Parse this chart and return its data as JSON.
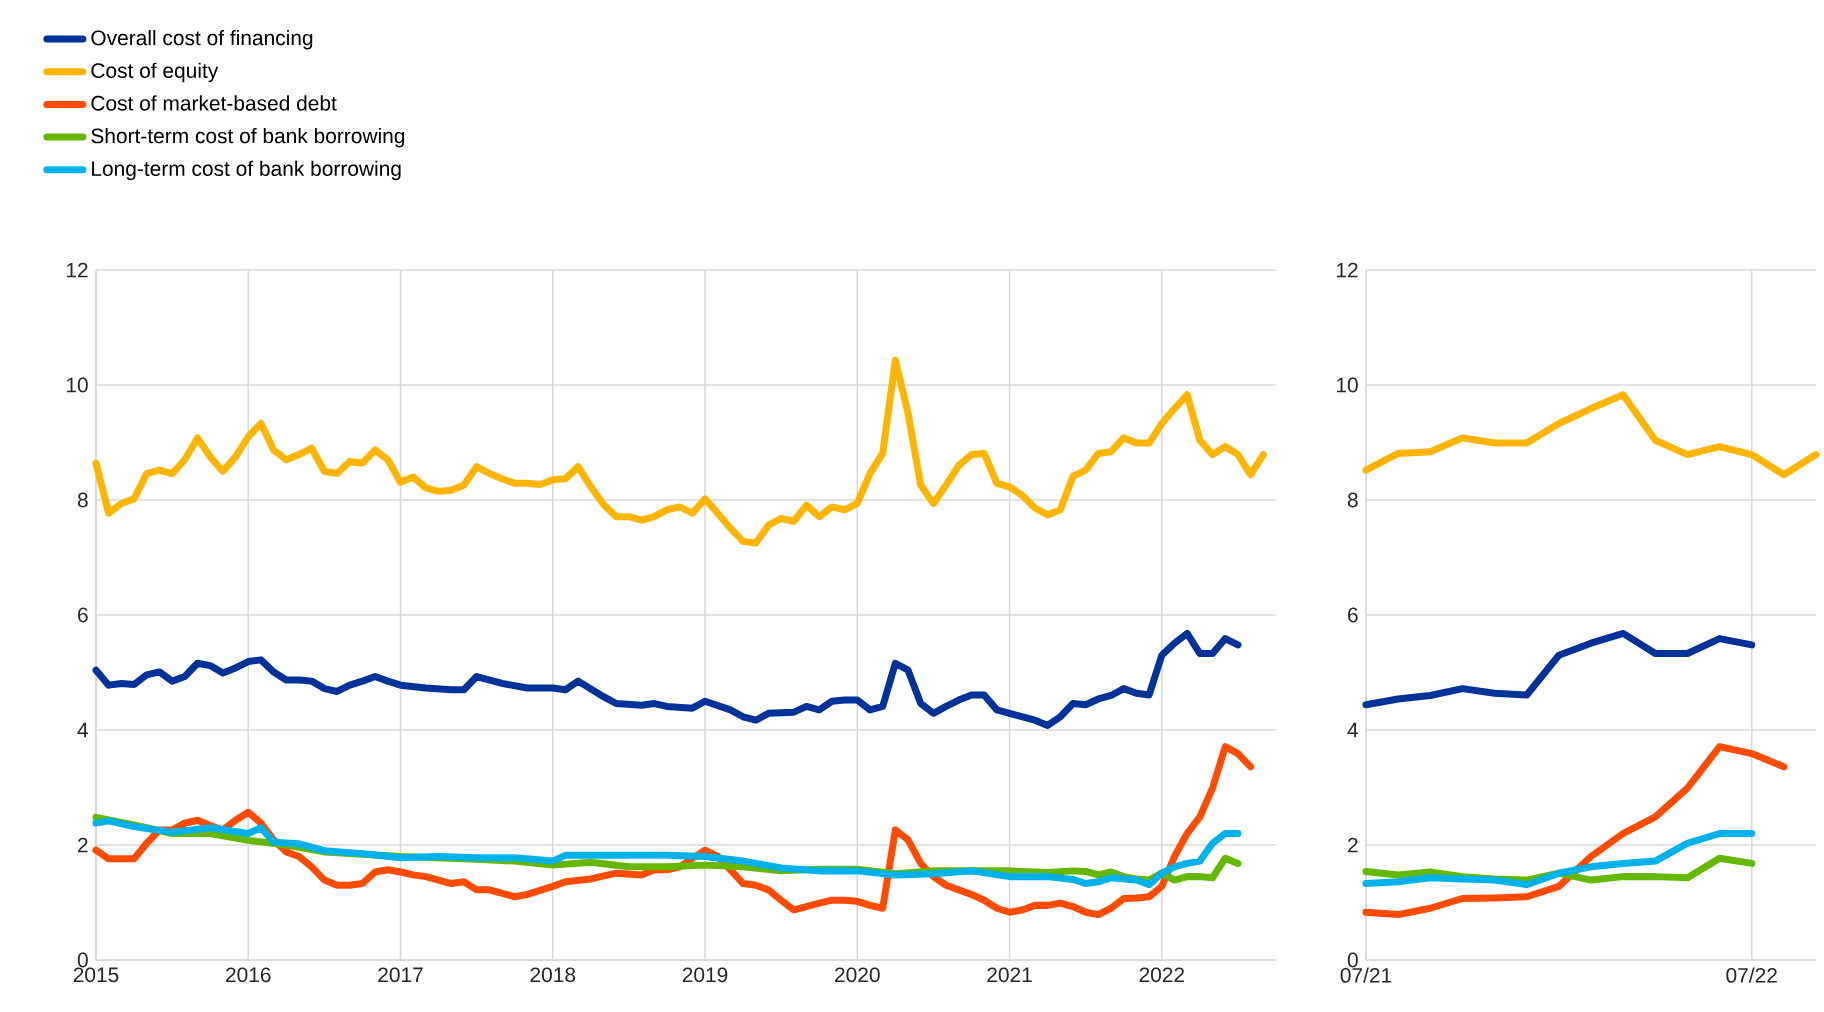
{
  "chart_data": [
    {
      "type": "line",
      "xlim": [
        "2015-01",
        "2022-10"
      ],
      "ylim": [
        0,
        12
      ],
      "grid": true,
      "legend": "top left",
      "xticks": [
        {
          "value": "2015-01",
          "label": "2015"
        },
        {
          "value": "2016-01",
          "label": "2016"
        },
        {
          "value": "2017-01",
          "label": "2017"
        },
        {
          "value": "2018-01",
          "label": "2018"
        },
        {
          "value": "2019-01",
          "label": "2019"
        },
        {
          "value": "2020-01",
          "label": "2020"
        },
        {
          "value": "2021-01",
          "label": "2021"
        },
        {
          "value": "2022-01",
          "label": "2022"
        }
      ],
      "yticks": [
        0,
        2,
        4,
        6,
        8,
        10,
        12
      ],
      "series": [
        {
          "name": "Overall cost of financing",
          "color": "#003299",
          "x": [
            "2015-01",
            "2015-02",
            "2015-03",
            "2015-04",
            "2015-05",
            "2015-06",
            "2015-07",
            "2015-08",
            "2015-09",
            "2015-10",
            "2015-11",
            "2015-12",
            "2016-01",
            "2016-02",
            "2016-03",
            "2016-04",
            "2016-05",
            "2016-06",
            "2016-07",
            "2016-08",
            "2016-09",
            "2016-10",
            "2016-11",
            "2016-12",
            "2017-01",
            "2017-03",
            "2017-05",
            "2017-06",
            "2017-07",
            "2017-09",
            "2017-11",
            "2018-01",
            "2018-02",
            "2018-03",
            "2018-05",
            "2018-06",
            "2018-08",
            "2018-09",
            "2018-10",
            "2018-12",
            "2019-01",
            "2019-03",
            "2019-04",
            "2019-05",
            "2019-06",
            "2019-08",
            "2019-09",
            "2019-10",
            "2019-11",
            "2019-12",
            "2020-01",
            "2020-02",
            "2020-03",
            "2020-04",
            "2020-05",
            "2020-06",
            "2020-07",
            "2020-08",
            "2020-09",
            "2020-10",
            "2020-11",
            "2020-12",
            "2021-01",
            "2021-03",
            "2021-04",
            "2021-05",
            "2021-06",
            "2021-07",
            "2021-08",
            "2021-09",
            "2021-10",
            "2021-11",
            "2021-12",
            "2022-01",
            "2022-02",
            "2022-03",
            "2022-04",
            "2022-05",
            "2022-06",
            "2022-07"
          ],
          "values": [
            5.04,
            4.78,
            4.81,
            4.79,
            4.96,
            5.01,
            4.85,
            4.93,
            5.16,
            5.12,
            4.99,
            5.08,
            5.19,
            5.22,
            5.01,
            4.87,
            4.87,
            4.85,
            4.72,
            4.67,
            4.78,
            4.85,
            4.93,
            4.85,
            4.78,
            4.73,
            4.7,
            4.7,
            4.93,
            4.81,
            4.73,
            4.73,
            4.7,
            4.85,
            4.58,
            4.46,
            4.43,
            4.46,
            4.41,
            4.38,
            4.5,
            4.35,
            4.23,
            4.17,
            4.29,
            4.31,
            4.41,
            4.35,
            4.5,
            4.52,
            4.52,
            4.35,
            4.41,
            5.16,
            5.04,
            4.46,
            4.29,
            4.41,
            4.52,
            4.61,
            4.61,
            4.35,
            4.29,
            4.17,
            4.08,
            4.23,
            4.46,
            4.44,
            4.54,
            4.6,
            4.72,
            4.64,
            4.61,
            5.3,
            5.51,
            5.68,
            5.33,
            5.33,
            5.59,
            5.48
          ]
        },
        {
          "name": "Cost of equity",
          "color": "#ffb400",
          "x": [
            "2015-01",
            "2015-02",
            "2015-03",
            "2015-04",
            "2015-05",
            "2015-06",
            "2015-07",
            "2015-08",
            "2015-09",
            "2015-10",
            "2015-11",
            "2015-12",
            "2016-01",
            "2016-02",
            "2016-03",
            "2016-04",
            "2016-05",
            "2016-06",
            "2016-07",
            "2016-08",
            "2016-09",
            "2016-10",
            "2016-11",
            "2016-12",
            "2017-01",
            "2017-02",
            "2017-03",
            "2017-04",
            "2017-05",
            "2017-06",
            "2017-07",
            "2017-08",
            "2017-09",
            "2017-10",
            "2017-11",
            "2017-12",
            "2018-01",
            "2018-02",
            "2018-03",
            "2018-04",
            "2018-05",
            "2018-06",
            "2018-07",
            "2018-08",
            "2018-09",
            "2018-10",
            "2018-11",
            "2018-12",
            "2019-01",
            "2019-02",
            "2019-03",
            "2019-04",
            "2019-05",
            "2019-06",
            "2019-07",
            "2019-08",
            "2019-09",
            "2019-10",
            "2019-11",
            "2019-12",
            "2020-01",
            "2020-02",
            "2020-03",
            "2020-04",
            "2020-05",
            "2020-06",
            "2020-07",
            "2020-08",
            "2020-09",
            "2020-10",
            "2020-11",
            "2020-12",
            "2021-01",
            "2021-02",
            "2021-03",
            "2021-04",
            "2021-05",
            "2021-06",
            "2021-07",
            "2021-08",
            "2021-09",
            "2021-10",
            "2021-11",
            "2021-12",
            "2022-01",
            "2022-02",
            "2022-03",
            "2022-04",
            "2022-05",
            "2022-06",
            "2022-07",
            "2022-08",
            "2022-09"
          ],
          "values": [
            8.64,
            7.77,
            7.94,
            8.02,
            8.46,
            8.52,
            8.46,
            8.7,
            9.08,
            8.75,
            8.5,
            8.75,
            9.1,
            9.33,
            8.87,
            8.7,
            8.79,
            8.9,
            8.5,
            8.46,
            8.67,
            8.64,
            8.87,
            8.7,
            8.31,
            8.4,
            8.21,
            8.15,
            8.17,
            8.26,
            8.58,
            8.46,
            8.37,
            8.29,
            8.29,
            8.27,
            8.35,
            8.37,
            8.58,
            8.23,
            7.92,
            7.71,
            7.71,
            7.65,
            7.71,
            7.83,
            7.88,
            7.77,
            8.02,
            7.77,
            7.51,
            7.28,
            7.25,
            7.56,
            7.68,
            7.63,
            7.91,
            7.71,
            7.88,
            7.83,
            7.94,
            8.46,
            8.81,
            10.43,
            9.51,
            8.26,
            7.94,
            8.26,
            8.6,
            8.79,
            8.81,
            8.29,
            8.23,
            8.08,
            7.86,
            7.74,
            7.83,
            8.41,
            8.52,
            8.81,
            8.84,
            9.08,
            8.99,
            8.99,
            9.33,
            9.59,
            9.83,
            9.04,
            8.79,
            8.93,
            8.79,
            8.44,
            8.79
          ]
        },
        {
          "name": "Cost of market-based debt",
          "color": "#ff4b00",
          "x": [
            "2015-01",
            "2015-02",
            "2015-03",
            "2015-04",
            "2015-05",
            "2015-06",
            "2015-07",
            "2015-08",
            "2015-09",
            "2015-10",
            "2015-11",
            "2015-12",
            "2016-01",
            "2016-02",
            "2016-03",
            "2016-04",
            "2016-05",
            "2016-06",
            "2016-07",
            "2016-08",
            "2016-09",
            "2016-10",
            "2016-11",
            "2016-12",
            "2017-01",
            "2017-02",
            "2017-03",
            "2017-04",
            "2017-05",
            "2017-06",
            "2017-07",
            "2017-08",
            "2017-09",
            "2017-10",
            "2017-11",
            "2018-01",
            "2018-02",
            "2018-04",
            "2018-06",
            "2018-08",
            "2018-09",
            "2018-10",
            "2018-11",
            "2019-01",
            "2019-02",
            "2019-03",
            "2019-04",
            "2019-05",
            "2019-06",
            "2019-07",
            "2019-08",
            "2019-09",
            "2019-10",
            "2019-11",
            "2019-12",
            "2020-01",
            "2020-02",
            "2020-03",
            "2020-04",
            "2020-05",
            "2020-06",
            "2020-07",
            "2020-08",
            "2020-09",
            "2020-10",
            "2020-11",
            "2020-12",
            "2021-01",
            "2021-02",
            "2021-03",
            "2021-04",
            "2021-05",
            "2021-06",
            "2021-07",
            "2021-08",
            "2021-09",
            "2021-10",
            "2021-11",
            "2021-12",
            "2022-01",
            "2022-02",
            "2022-03",
            "2022-04",
            "2022-05",
            "2022-06",
            "2022-07",
            "2022-08"
          ],
          "values": [
            1.91,
            1.76,
            1.76,
            1.76,
            2.03,
            2.26,
            2.26,
            2.38,
            2.43,
            2.34,
            2.26,
            2.43,
            2.57,
            2.38,
            2.09,
            1.88,
            1.8,
            1.62,
            1.39,
            1.3,
            1.3,
            1.33,
            1.53,
            1.57,
            1.53,
            1.48,
            1.45,
            1.39,
            1.33,
            1.36,
            1.22,
            1.22,
            1.16,
            1.1,
            1.14,
            1.28,
            1.36,
            1.41,
            1.51,
            1.48,
            1.57,
            1.57,
            1.62,
            1.91,
            1.8,
            1.57,
            1.33,
            1.3,
            1.22,
            1.04,
            0.87,
            0.93,
            0.99,
            1.04,
            1.04,
            1.02,
            0.95,
            0.9,
            2.26,
            2.09,
            1.68,
            1.45,
            1.3,
            1.22,
            1.14,
            1.04,
            0.9,
            0.83,
            0.87,
            0.95,
            0.95,
            0.99,
            0.93,
            0.83,
            0.79,
            0.9,
            1.07,
            1.08,
            1.1,
            1.28,
            1.8,
            2.2,
            2.49,
            2.99,
            3.71,
            3.59,
            3.36
          ]
        },
        {
          "name": "Short-term cost of bank borrowing",
          "color": "#65b800",
          "x": [
            "2015-01",
            "2015-04",
            "2015-07",
            "2015-10",
            "2016-01",
            "2016-04",
            "2016-07",
            "2017-01",
            "2017-07",
            "2017-10",
            "2018-01",
            "2018-04",
            "2018-07",
            "2018-10",
            "2019-01",
            "2019-04",
            "2019-07",
            "2019-10",
            "2020-01",
            "2020-04",
            "2020-07",
            "2020-10",
            "2021-01",
            "2021-04",
            "2021-06",
            "2021-07",
            "2021-08",
            "2021-09",
            "2021-10",
            "2021-11",
            "2021-12",
            "2022-01",
            "2022-02",
            "2022-03",
            "2022-04",
            "2022-05",
            "2022-06",
            "2022-07"
          ],
          "values": [
            2.48,
            2.35,
            2.2,
            2.2,
            2.08,
            2.0,
            1.88,
            1.8,
            1.75,
            1.72,
            1.65,
            1.7,
            1.62,
            1.62,
            1.65,
            1.62,
            1.55,
            1.58,
            1.58,
            1.5,
            1.55,
            1.55,
            1.55,
            1.52,
            1.55,
            1.54,
            1.48,
            1.53,
            1.45,
            1.41,
            1.39,
            1.51,
            1.39,
            1.45,
            1.45,
            1.43,
            1.77,
            1.68
          ]
        },
        {
          "name": "Long-term cost of bank borrowing",
          "color": "#00b1ea",
          "x": [
            "2015-01",
            "2015-02",
            "2015-04",
            "2015-07",
            "2015-10",
            "2016-01",
            "2016-02",
            "2016-03",
            "2016-05",
            "2016-07",
            "2016-10",
            "2017-01",
            "2017-04",
            "2017-07",
            "2017-10",
            "2018-01",
            "2018-02",
            "2018-07",
            "2018-10",
            "2019-01",
            "2019-04",
            "2019-07",
            "2019-10",
            "2020-01",
            "2020-04",
            "2020-07",
            "2020-10",
            "2021-01",
            "2021-04",
            "2021-06",
            "2021-07",
            "2021-08",
            "2021-09",
            "2021-10",
            "2021-11",
            "2021-12",
            "2022-01",
            "2022-02",
            "2022-03",
            "2022-04",
            "2022-05",
            "2022-06",
            "2022-07"
          ],
          "values": [
            2.38,
            2.42,
            2.32,
            2.22,
            2.3,
            2.2,
            2.3,
            2.05,
            2.02,
            1.9,
            1.85,
            1.78,
            1.8,
            1.78,
            1.78,
            1.72,
            1.82,
            1.82,
            1.82,
            1.8,
            1.72,
            1.6,
            1.55,
            1.55,
            1.48,
            1.5,
            1.55,
            1.45,
            1.45,
            1.4,
            1.33,
            1.36,
            1.43,
            1.41,
            1.39,
            1.31,
            1.51,
            1.62,
            1.68,
            1.72,
            2.03,
            2.2,
            2.2
          ]
        }
      ]
    },
    {
      "type": "line",
      "xlim": [
        "2021-07",
        "2022-09"
      ],
      "ylim": [
        0,
        12
      ],
      "grid": true,
      "xticks": [
        {
          "value": "2021-07",
          "label": "07/21"
        },
        {
          "value": "2022-07",
          "label": "07/22"
        }
      ],
      "yticks": [
        0,
        2,
        4,
        6,
        8,
        10,
        12
      ],
      "series": [
        {
          "color": "#003299",
          "x": [
            "2021-07",
            "2021-08",
            "2021-09",
            "2021-10",
            "2021-11",
            "2021-12",
            "2022-01",
            "2022-02",
            "2022-03",
            "2022-04",
            "2022-05",
            "2022-06",
            "2022-07"
          ],
          "values": [
            4.44,
            4.54,
            4.6,
            4.72,
            4.64,
            4.61,
            5.3,
            5.51,
            5.68,
            5.33,
            5.33,
            5.59,
            5.48
          ]
        },
        {
          "color": "#ffb400",
          "x": [
            "2021-07",
            "2021-08",
            "2021-09",
            "2021-10",
            "2021-11",
            "2021-12",
            "2022-01",
            "2022-02",
            "2022-03",
            "2022-04",
            "2022-05",
            "2022-06",
            "2022-07",
            "2022-08",
            "2022-09"
          ],
          "values": [
            8.52,
            8.81,
            8.84,
            9.08,
            8.99,
            8.99,
            9.33,
            9.59,
            9.83,
            9.04,
            8.79,
            8.93,
            8.79,
            8.44,
            8.79
          ]
        },
        {
          "color": "#ff4b00",
          "x": [
            "2021-07",
            "2021-08",
            "2021-09",
            "2021-10",
            "2021-11",
            "2021-12",
            "2022-01",
            "2022-02",
            "2022-03",
            "2022-04",
            "2022-05",
            "2022-06",
            "2022-07",
            "2022-08"
          ],
          "values": [
            0.83,
            0.79,
            0.9,
            1.07,
            1.08,
            1.1,
            1.28,
            1.8,
            2.2,
            2.49,
            2.99,
            3.71,
            3.59,
            3.36
          ]
        },
        {
          "color": "#65b800",
          "x": [
            "2021-07",
            "2021-08",
            "2021-09",
            "2021-10",
            "2021-11",
            "2021-12",
            "2022-01",
            "2022-02",
            "2022-03",
            "2022-04",
            "2022-05",
            "2022-06",
            "2022-07"
          ],
          "values": [
            1.54,
            1.48,
            1.53,
            1.45,
            1.41,
            1.39,
            1.51,
            1.39,
            1.45,
            1.45,
            1.43,
            1.77,
            1.68
          ]
        },
        {
          "color": "#00b1ea",
          "x": [
            "2021-07",
            "2021-08",
            "2021-09",
            "2021-10",
            "2021-11",
            "2021-12",
            "2022-01",
            "2022-02",
            "2022-03",
            "2022-04",
            "2022-05",
            "2022-06",
            "2022-07"
          ],
          "values": [
            1.33,
            1.36,
            1.43,
            1.41,
            1.39,
            1.31,
            1.51,
            1.62,
            1.68,
            1.72,
            2.03,
            2.2,
            2.2
          ]
        }
      ]
    }
  ]
}
